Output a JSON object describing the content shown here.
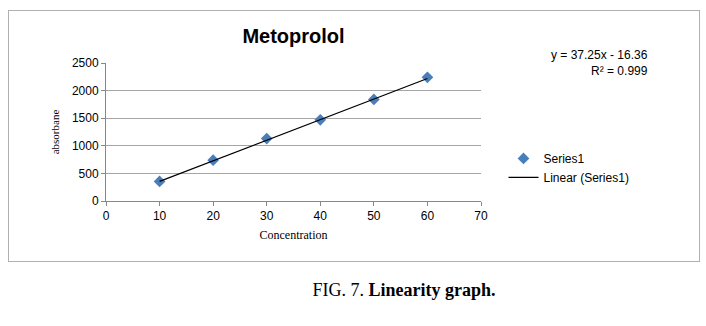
{
  "chart_data": {
    "type": "scatter",
    "title": "Metoprolol",
    "x_label": "Concentration",
    "y_label": "absorbane",
    "series": [
      {
        "name": "Series1",
        "type": "scatter",
        "marker": "diamond",
        "color": "#4a7ebb",
        "x": [
          10,
          20,
          30,
          40,
          50,
          60
        ],
        "values": [
          355,
          740,
          1130,
          1470,
          1840,
          2240
        ]
      },
      {
        "name": "Linear (Series1)",
        "type": "line",
        "line_style": "solid",
        "color": "#000000",
        "x": [
          10,
          60
        ],
        "values": [
          356,
          2219
        ]
      }
    ],
    "annotations": [
      "y = 37.25x - 16.36",
      "R² = 0.999"
    ],
    "xlim": [
      0,
      70
    ],
    "xticks": [
      0,
      10,
      20,
      30,
      40,
      50,
      60,
      70
    ],
    "ylim": [
      0,
      2500
    ],
    "yticks": [
      0,
      500,
      1000,
      1500,
      2000,
      2500
    ],
    "grid": true,
    "legend": "right",
    "caption": {
      "label": "FIG. 7.",
      "text": "Linearity graph."
    }
  }
}
